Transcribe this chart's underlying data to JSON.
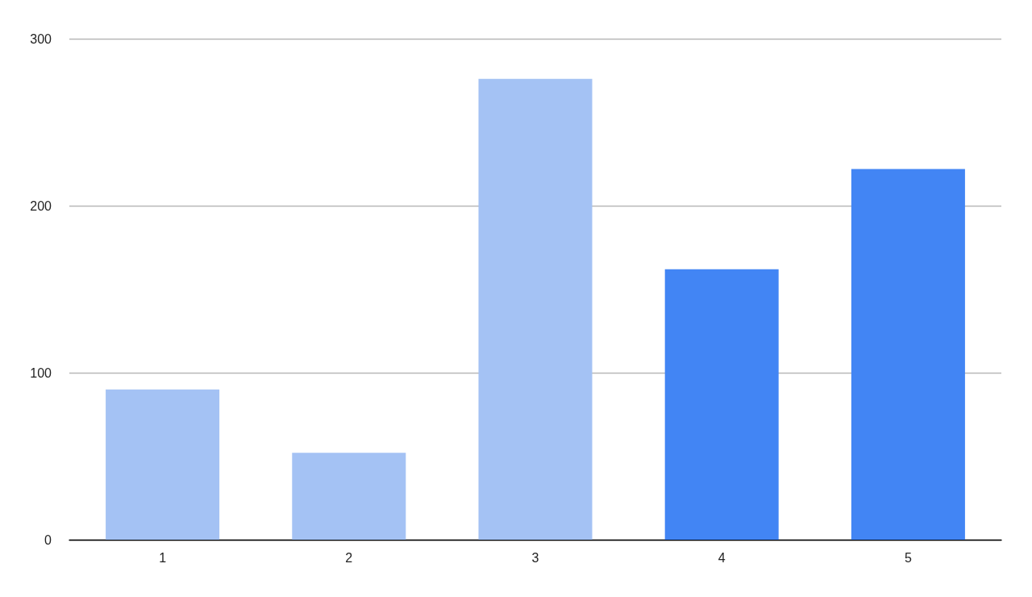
{
  "chart_data": {
    "type": "bar",
    "categories": [
      "1",
      "2",
      "3",
      "4",
      "5"
    ],
    "values": [
      90,
      52,
      276,
      162,
      222
    ],
    "colors": [
      "#a4c2f4",
      "#a4c2f4",
      "#a4c2f4",
      "#4285f4",
      "#4285f4"
    ],
    "ylim": [
      0,
      300
    ],
    "yticks": [
      0,
      100,
      200,
      300
    ],
    "grid": "y"
  }
}
